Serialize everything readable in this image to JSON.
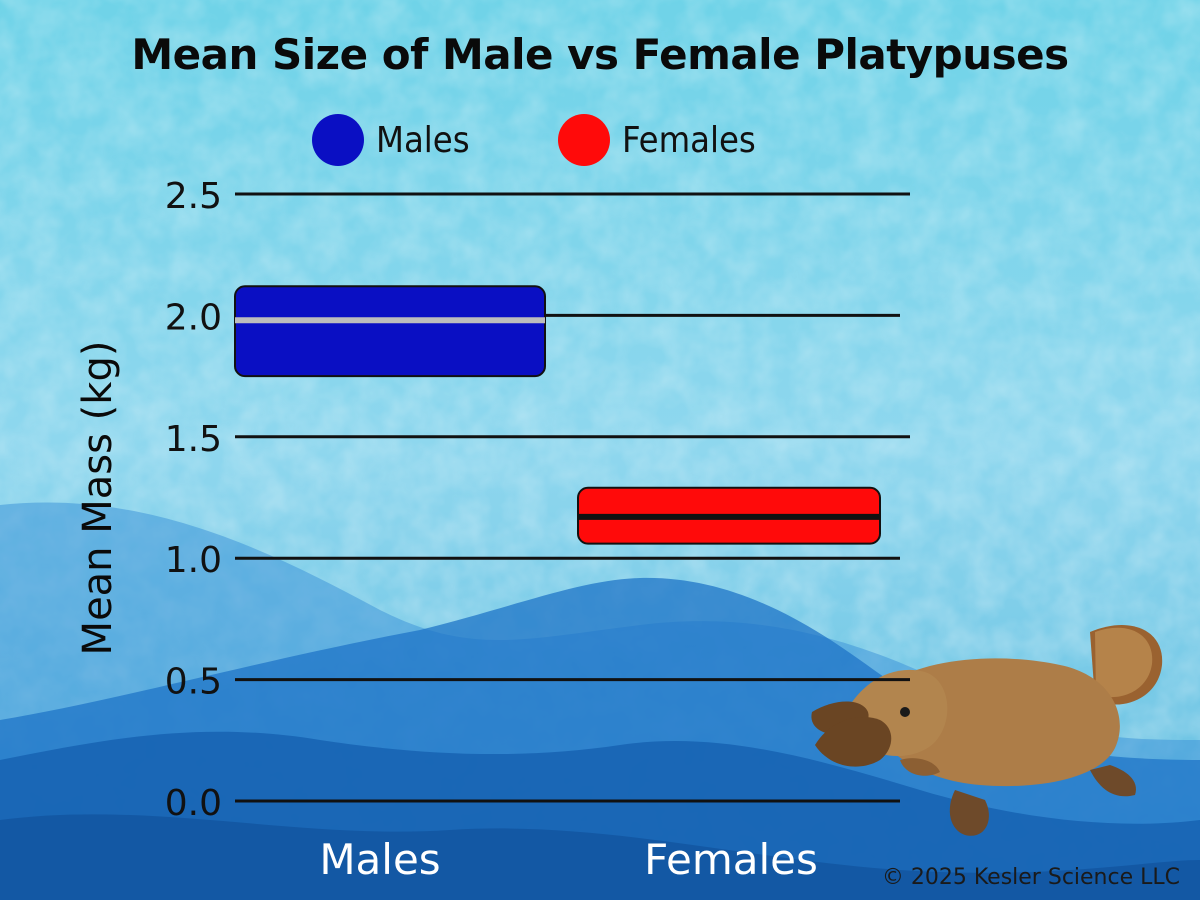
{
  "title": "Mean Size of Male vs Female Platypuses",
  "legend": [
    {
      "label": "Males",
      "color": "#0a0fc3"
    },
    {
      "label": "Females",
      "color": "#ff0a0a"
    }
  ],
  "copyright": "© 2025 Kesler Science LLC",
  "chart_data": {
    "type": "bar",
    "title": "Mean Size of Male vs Female Platypuses",
    "ylabel": "Mean Mass (kg)",
    "xlabel": "",
    "ylim": [
      0,
      2.5
    ],
    "yticks": [
      "0.0",
      "0.5",
      "1.0",
      "1.5",
      "2.0",
      "2.5"
    ],
    "grid": true,
    "legend_position": "top",
    "categories": [
      "Males",
      "Females"
    ],
    "series": [
      {
        "name": "Males",
        "category": "Males",
        "mean": 1.98,
        "low": 1.75,
        "high": 2.12,
        "color": "#0a0fc3",
        "line_color": "#bdbdbd"
      },
      {
        "name": "Females",
        "category": "Females",
        "mean": 1.17,
        "low": 1.06,
        "high": 1.29,
        "color": "#ff0a0a",
        "line_color": "#111111"
      }
    ]
  }
}
